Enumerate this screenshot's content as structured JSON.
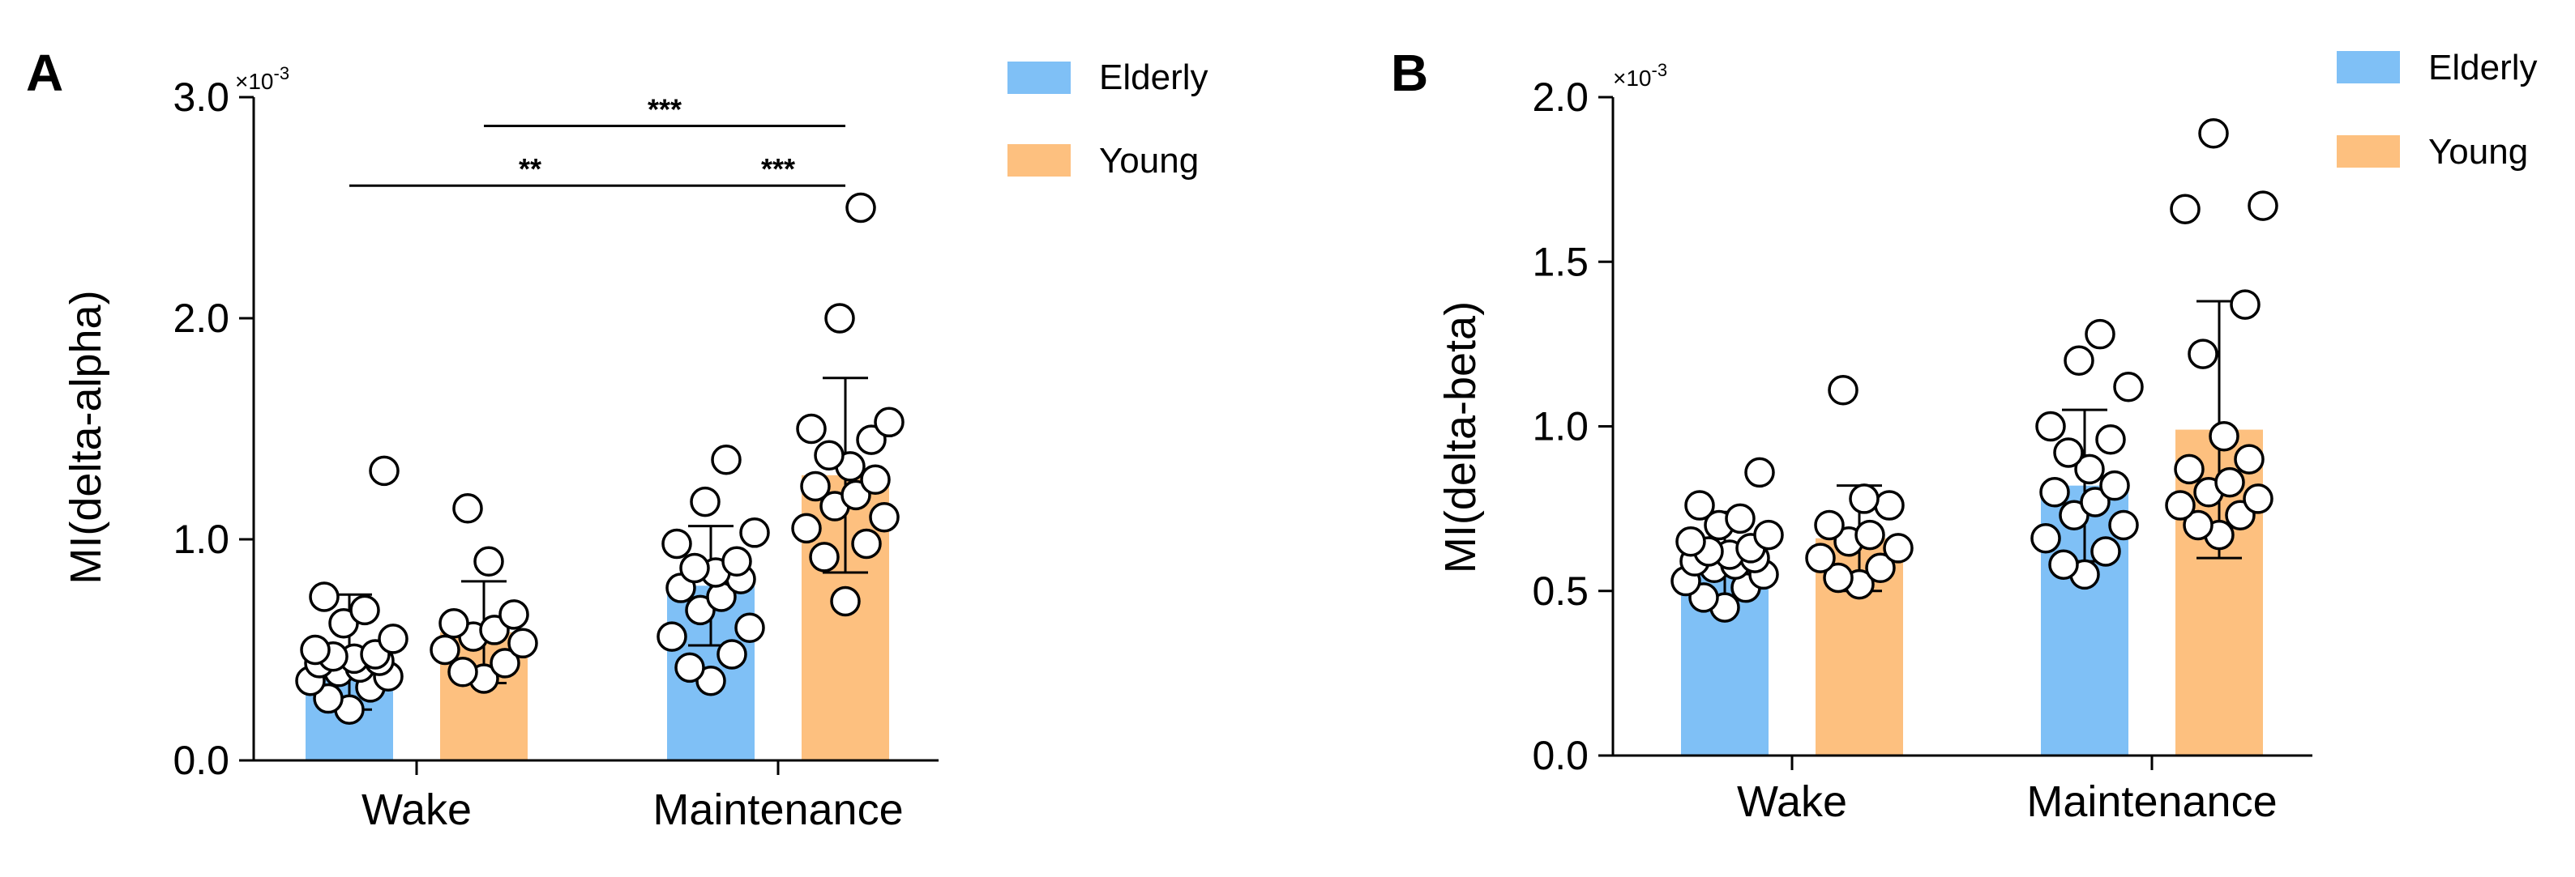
{
  "colors": {
    "elderly": "#7fc0f6",
    "young": "#fdc07f",
    "axis": "#000000"
  },
  "legend": {
    "elderly_label": "Elderly",
    "young_label": "Young"
  },
  "chart_data": [
    {
      "id": "A",
      "type": "bar",
      "panel_label": "A",
      "title": "",
      "xlabel": "",
      "ylabel": "MI(delta-alpha)",
      "ylim": [
        0,
        3.0
      ],
      "scale_label": "×10",
      "scale_exponent": "-3",
      "yticks": [
        0,
        1,
        2,
        3
      ],
      "ytick_labels": [
        "0.0",
        "1.0",
        "2.0",
        "3.0"
      ],
      "categories": [
        "Wake",
        "Maintenance"
      ],
      "series": [
        {
          "name": "Elderly",
          "values": [
            0.49,
            0.79
          ],
          "sd": [
            0.26,
            0.27
          ],
          "points": [
            [
              0.23,
              0.28,
              0.33,
              0.36,
              0.38,
              0.4,
              0.42,
              0.44,
              0.45,
              0.46,
              0.47,
              0.48,
              0.5,
              0.55,
              0.62,
              0.68,
              0.74,
              1.31
            ],
            [
              0.36,
              0.42,
              0.48,
              0.56,
              0.6,
              0.68,
              0.74,
              0.78,
              0.82,
              0.85,
              0.87,
              0.9,
              0.98,
              1.03,
              1.17,
              1.36
            ]
          ]
        },
        {
          "name": "Young",
          "values": [
            0.58,
            1.29
          ],
          "sd": [
            0.23,
            0.44
          ],
          "points": [
            [
              0.37,
              0.4,
              0.44,
              0.5,
              0.53,
              0.56,
              0.59,
              0.62,
              0.66,
              0.9,
              1.14
            ],
            [
              0.72,
              0.92,
              0.98,
              1.05,
              1.1,
              1.15,
              1.2,
              1.24,
              1.27,
              1.33,
              1.38,
              1.45,
              1.5,
              1.53,
              2.0,
              2.5
            ]
          ]
        }
      ],
      "significance": [
        {
          "label": "**",
          "from": [
            0,
            0
          ],
          "to": [
            1,
            0
          ],
          "y": 2.6
        },
        {
          "label": "***",
          "from": [
            1,
            0
          ],
          "to": [
            1,
            1
          ],
          "y": 2.6
        },
        {
          "label": "***",
          "from": [
            0,
            1
          ],
          "to": [
            1,
            1
          ],
          "y": 2.87
        }
      ]
    },
    {
      "id": "B",
      "type": "bar",
      "panel_label": "B",
      "title": "",
      "xlabel": "",
      "ylabel": "MI(delta-beta)",
      "ylim": [
        0,
        2.0
      ],
      "scale_label": "×10",
      "scale_exponent": "-3",
      "yticks": [
        0,
        0.5,
        1.0,
        1.5,
        2.0
      ],
      "ytick_labels": [
        "0.0",
        "0.5",
        "1.0",
        "1.5",
        "2.0"
      ],
      "categories": [
        "Wake",
        "Maintenance"
      ],
      "series": [
        {
          "name": "Elderly",
          "values": [
            0.61,
            0.82
          ],
          "sd": [
            0.13,
            0.23
          ],
          "points": [
            [
              0.45,
              0.48,
              0.51,
              0.53,
              0.55,
              0.57,
              0.58,
              0.59,
              0.6,
              0.61,
              0.62,
              0.63,
              0.65,
              0.67,
              0.7,
              0.72,
              0.76,
              0.86
            ],
            [
              0.55,
              0.58,
              0.62,
              0.66,
              0.7,
              0.73,
              0.77,
              0.8,
              0.82,
              0.87,
              0.92,
              0.96,
              1.0,
              1.12,
              1.2,
              1.28
            ]
          ]
        },
        {
          "name": "Young",
          "values": [
            0.66,
            0.99
          ],
          "sd": [
            0.16,
            0.39
          ],
          "points": [
            [
              0.52,
              0.54,
              0.57,
              0.6,
              0.63,
              0.65,
              0.67,
              0.7,
              0.76,
              0.78,
              1.11
            ],
            [
              0.67,
              0.7,
              0.73,
              0.76,
              0.78,
              0.8,
              0.83,
              0.87,
              0.9,
              0.97,
              1.22,
              1.37,
              1.66,
              1.67,
              1.89
            ]
          ]
        }
      ],
      "significance": []
    }
  ]
}
